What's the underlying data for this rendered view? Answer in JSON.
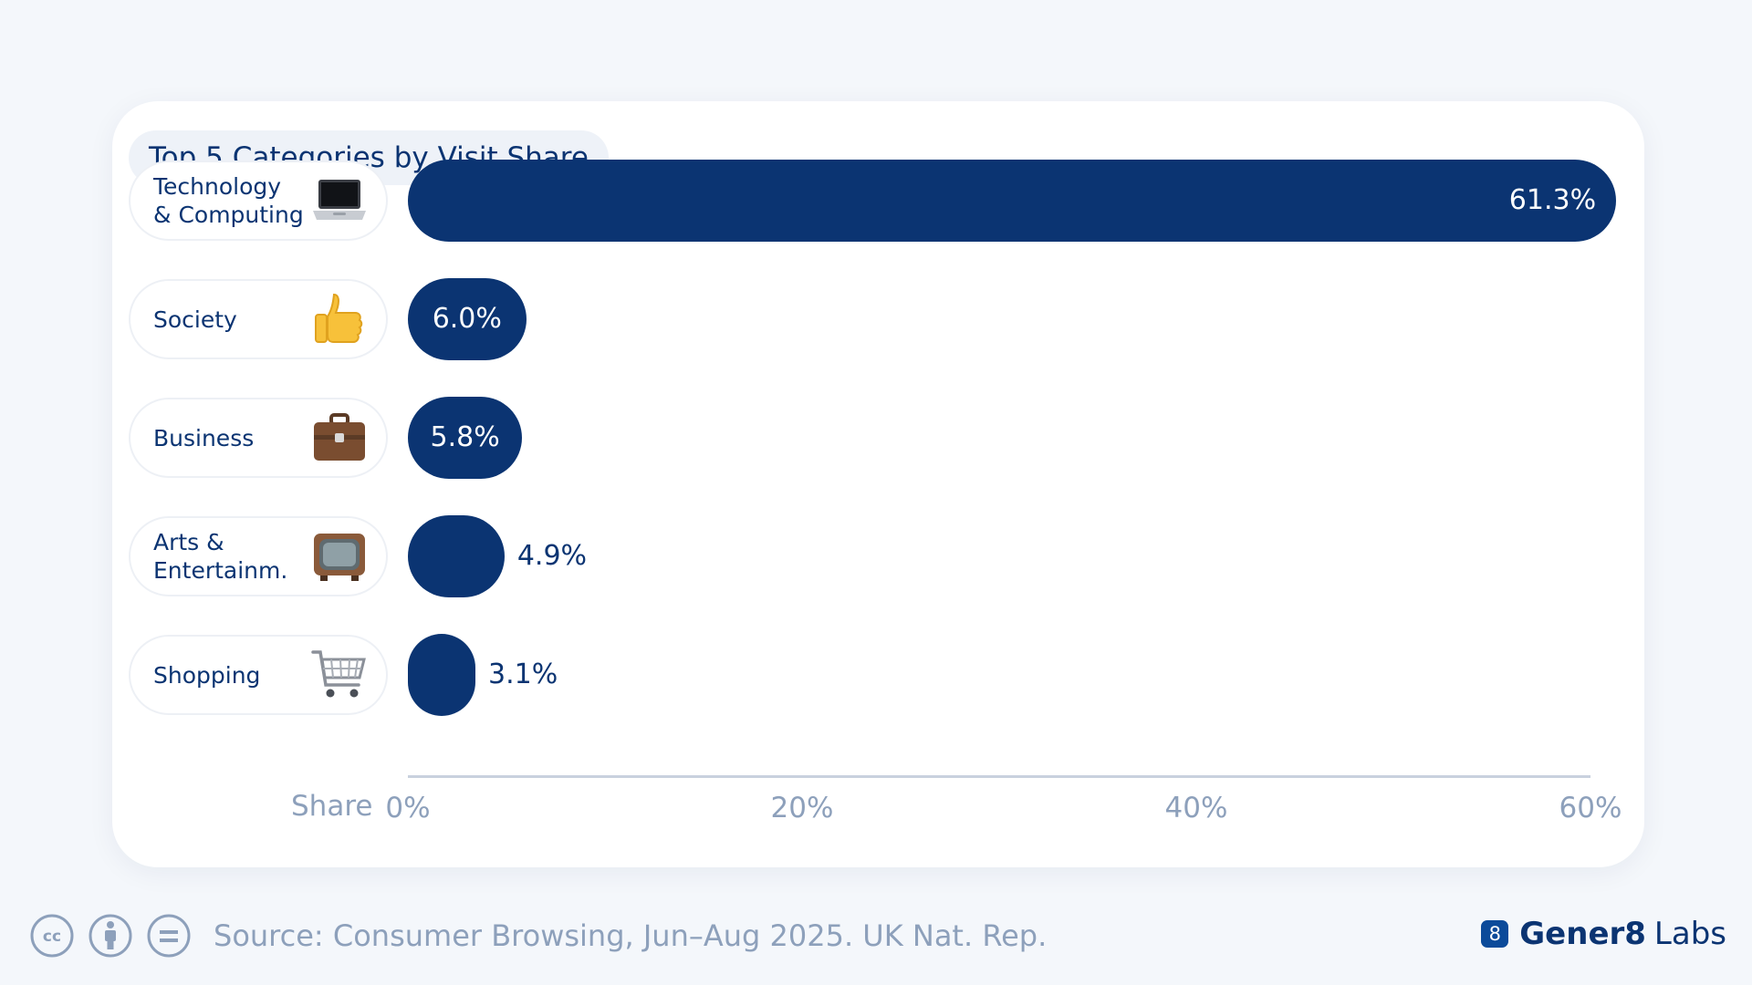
{
  "chart_data": {
    "type": "bar",
    "orientation": "horizontal",
    "title": "Top 5 Categories by Visit Share",
    "xlabel": "Share",
    "xlim": [
      0,
      60
    ],
    "xticks": [
      "0%",
      "20%",
      "40%",
      "60%"
    ],
    "categories": [
      "Technology\n& Computing",
      "Society",
      "Business",
      "Arts &\nEntertainm.",
      "Shopping"
    ],
    "category_icons": [
      "laptop-icon",
      "thumbs-up-icon",
      "briefcase-icon",
      "television-icon",
      "shopping-cart-icon"
    ],
    "values": [
      61.3,
      6.0,
      5.8,
      4.9,
      3.1
    ],
    "value_labels": [
      "61.3%",
      "6.0%",
      "5.8%",
      "4.9%",
      "3.1%"
    ],
    "bar_color": "#0b3472"
  },
  "footer": {
    "license_icons": [
      "creative-commons-icon",
      "attribution-icon",
      "no-derivatives-icon"
    ],
    "source": "Source: Consumer Browsing, Jun–Aug 2025. UK Nat. Rep.",
    "brand_mark": "8",
    "brand_name": "Gener8",
    "brand_suffix": "Labs"
  }
}
